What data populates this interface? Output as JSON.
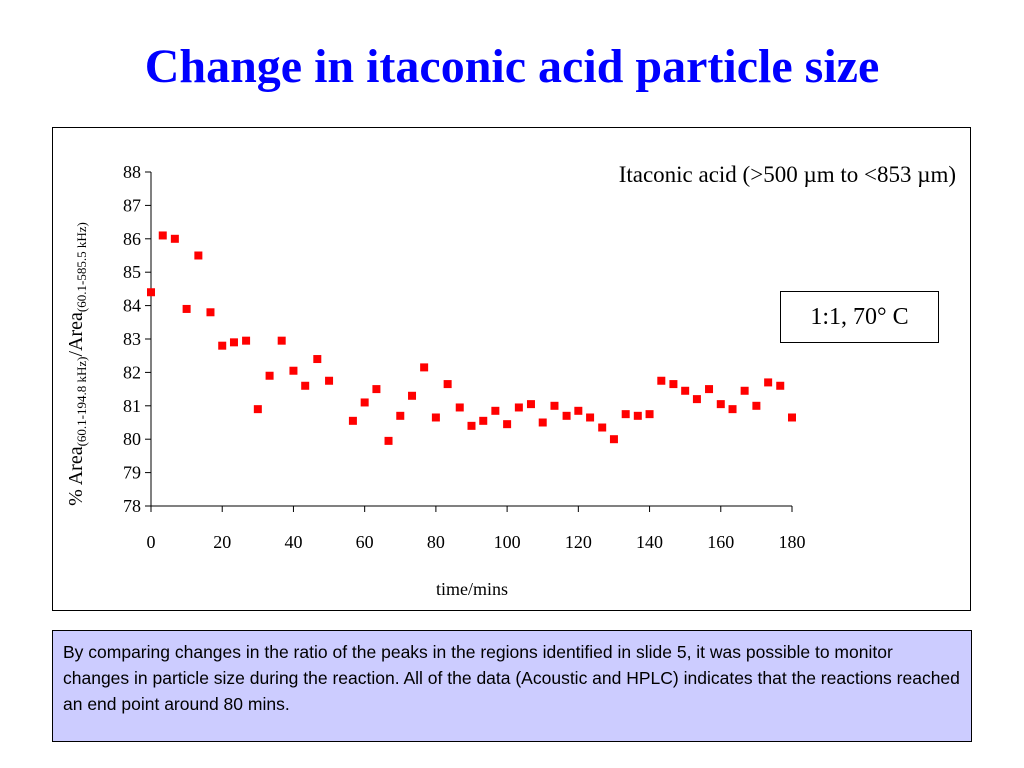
{
  "slide": {
    "title": "Change in itaconic acid particle size",
    "caption": "By comparing changes in the ratio of the peaks in the regions identified in slide 5, it was possible to monitor changes in particle size during the reaction. All of the data (Acoustic and HPLC) indicates that the reactions reached an end point around 80 mins."
  },
  "colors": {
    "title": "#0000ff",
    "marker": "#ff0000",
    "caption_background": "#ccccff"
  },
  "chart_data": {
    "type": "scatter",
    "title": "Itaconic acid (>500 µm to <853 µm)",
    "annotation": "1:1, 70° C",
    "xlabel": "time/mins",
    "ylabel": {
      "prefix": "% Area",
      "sub1": "(60.1-194.8 kHz)",
      "middle": "/Area",
      "sub2": "(60.1-585.5 kHz)"
    },
    "xlim": [
      0,
      180
    ],
    "ylim": [
      78,
      88
    ],
    "xticks": [
      "0",
      "20",
      "40",
      "60",
      "80",
      "100",
      "120",
      "140",
      "160",
      "180"
    ],
    "yticks": [
      "78",
      "79",
      "80",
      "81",
      "82",
      "83",
      "84",
      "85",
      "86",
      "87",
      "88"
    ],
    "grid": false,
    "marker": "square",
    "points": [
      [
        0,
        84.4
      ],
      [
        3.3,
        86.1
      ],
      [
        6.7,
        86.0
      ],
      [
        10,
        83.9
      ],
      [
        13.3,
        85.5
      ],
      [
        16.7,
        83.8
      ],
      [
        20,
        82.8
      ],
      [
        23.3,
        82.9
      ],
      [
        26.7,
        82.95
      ],
      [
        30,
        80.9
      ],
      [
        33.3,
        81.9
      ],
      [
        36.7,
        82.95
      ],
      [
        40,
        82.05
      ],
      [
        43.3,
        81.6
      ],
      [
        46.7,
        82.4
      ],
      [
        50,
        81.75
      ],
      [
        56.7,
        80.55
      ],
      [
        60,
        81.1
      ],
      [
        63.3,
        81.5
      ],
      [
        66.7,
        79.95
      ],
      [
        70,
        80.7
      ],
      [
        73.3,
        81.3
      ],
      [
        76.7,
        82.15
      ],
      [
        80,
        80.65
      ],
      [
        83.3,
        81.65
      ],
      [
        86.7,
        80.95
      ],
      [
        90,
        80.4
      ],
      [
        93.3,
        80.55
      ],
      [
        96.7,
        80.85
      ],
      [
        100,
        80.45
      ],
      [
        103.3,
        80.95
      ],
      [
        106.7,
        81.05
      ],
      [
        110,
        80.5
      ],
      [
        113.3,
        81.0
      ],
      [
        116.7,
        80.7
      ],
      [
        120,
        80.85
      ],
      [
        123.3,
        80.65
      ],
      [
        126.7,
        80.35
      ],
      [
        130,
        80.0
      ],
      [
        133.3,
        80.75
      ],
      [
        136.7,
        80.7
      ],
      [
        140,
        80.75
      ],
      [
        143.3,
        81.75
      ],
      [
        146.7,
        81.65
      ],
      [
        150,
        81.45
      ],
      [
        153.3,
        81.2
      ],
      [
        156.7,
        81.5
      ],
      [
        160,
        81.05
      ],
      [
        163.3,
        80.9
      ],
      [
        166.7,
        81.45
      ],
      [
        170,
        81.0
      ],
      [
        173.3,
        81.7
      ],
      [
        176.7,
        81.6
      ],
      [
        180,
        80.65
      ]
    ]
  }
}
